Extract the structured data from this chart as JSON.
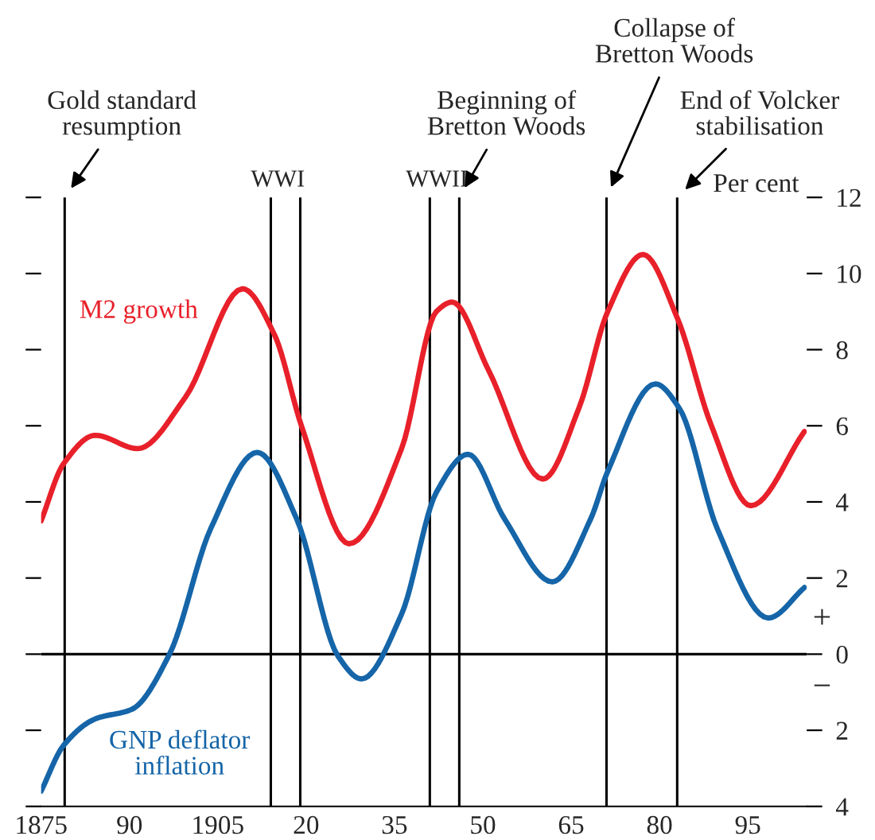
{
  "chart_data": {
    "type": "line",
    "ylabel": "Per cent",
    "xlim": [
      1875,
      2005
    ],
    "xticks": [
      {
        "value": 1875,
        "label": "1875"
      },
      {
        "value": 1890,
        "label": "90"
      },
      {
        "value": 1905,
        "label": "1905"
      },
      {
        "value": 1920,
        "label": "20"
      },
      {
        "value": 1935,
        "label": "35"
      },
      {
        "value": 1950,
        "label": "50"
      },
      {
        "value": 1965,
        "label": "65"
      },
      {
        "value": 1980,
        "label": "80"
      },
      {
        "value": 1995,
        "label": "95"
      }
    ],
    "ylim": [
      -4,
      12
    ],
    "yticks": [
      12,
      10,
      8,
      6,
      4,
      2,
      0,
      {
        "value": -2,
        "label": "2"
      },
      {
        "value": -4,
        "label": "4"
      }
    ],
    "grid": false,
    "marker": "none",
    "line_style": "solid",
    "series": [
      {
        "name": "M2 growth",
        "color": "#e8202a",
        "x": [
          1875,
          1878.8,
          1884.2,
          1891.4,
          1899.5,
          1909.2,
          1914.6,
          1919.2,
          1927.3,
          1936.2,
          1942.1,
          1944.8,
          1951,
          1960.2,
          1966.4,
          1971.2,
          1977.2,
          1983.1,
          1988.7,
          1995.5,
          2004.6
        ],
        "values": [
          3.5,
          5.0,
          5.75,
          5.4,
          6.75,
          9.6,
          8.4,
          6.0,
          2.9,
          5.4,
          9.0,
          9.25,
          7.45,
          4.6,
          6.5,
          9.0,
          10.5,
          8.8,
          6.05,
          3.9,
          5.85
        ]
      },
      {
        "name": "GNP deflator\ninflation",
        "color": "#1565a8",
        "x": [
          1875,
          1878.8,
          1884.2,
          1890.4,
          1896.8,
          1903.8,
          1911.7,
          1918.4,
          1925.4,
          1929.4,
          1936.2,
          1942.1,
          1947.5,
          1953.7,
          1961.8,
          1968.3,
          1971.2,
          1979.3,
          1983.4,
          1989.8,
          1998.5,
          2004.6
        ],
        "values": [
          -3.6,
          -2.4,
          -1.7,
          -1.45,
          0,
          3.3,
          5.3,
          3.55,
          -0.05,
          -0.65,
          1.05,
          4.25,
          5.25,
          3.55,
          1.9,
          3.55,
          4.8,
          7.1,
          6.45,
          3.3,
          0.95,
          1.75
        ]
      }
    ],
    "ref_lines": [
      {
        "axis": "y",
        "value": 0,
        "label": null
      },
      {
        "axis": "x",
        "value": 1879,
        "label": "Gold standard\nresumption"
      },
      {
        "axis": "x",
        "value": 1914,
        "label": "WWI"
      },
      {
        "axis": "x",
        "value": 1919,
        "label": null
      },
      {
        "axis": "x",
        "value": 1941,
        "label": "WWII"
      },
      {
        "axis": "x",
        "value": 1946,
        "label": "Beginning of\nBretton Woods"
      },
      {
        "axis": "x",
        "value": 1971,
        "label": "Collapse of\nBretton Woods"
      },
      {
        "axis": "x",
        "value": 1983,
        "label": "End of Volcker\nstabilisation"
      }
    ],
    "annotations": [
      "+",
      "−"
    ]
  }
}
